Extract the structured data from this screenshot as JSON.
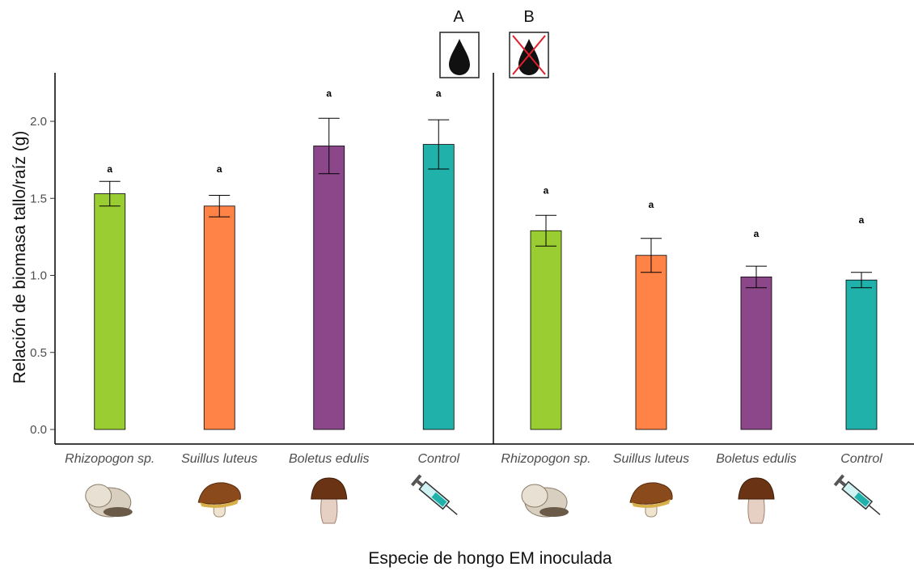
{
  "chart_data": {
    "type": "bar",
    "ylabel": "Relación de biomasa tallo/raíz (g)",
    "xlabel": "Especie de hongo EM inoculada",
    "ylim": [
      0,
      2.3
    ],
    "yticks": [
      "0.0",
      "0.5",
      "1.0",
      "1.5",
      "2.0"
    ],
    "ytick_values": [
      0,
      0.5,
      1.0,
      1.5,
      2.0
    ],
    "grid": false,
    "colors": {
      "Rhizopogon sp.": "#9acd32",
      "Suillus luteus": "#ff8247",
      "Boletus edulis": "#8b4789",
      "Control": "#20b2aa"
    },
    "panels": [
      {
        "label": "A",
        "icon": "water-drop-icon",
        "categories": [
          "Rhizopogon sp.",
          "Suillus luteus",
          "Boletus edulis",
          "Control"
        ],
        "values": [
          1.53,
          1.45,
          1.84,
          1.85
        ],
        "error": [
          0.08,
          0.07,
          0.18,
          0.16
        ],
        "significance": [
          "a",
          "a",
          "a",
          "a"
        ],
        "sig_y": [
          1.69,
          1.69,
          2.18,
          2.18
        ]
      },
      {
        "label": "B",
        "icon": "no-water-drop-icon",
        "categories": [
          "Rhizopogon sp.",
          "Suillus luteus",
          "Boletus edulis",
          "Control"
        ],
        "values": [
          1.29,
          1.13,
          0.99,
          0.97
        ],
        "error": [
          0.1,
          0.11,
          0.07,
          0.05
        ],
        "significance": [
          "a",
          "a",
          "a",
          "a"
        ],
        "sig_y": [
          1.55,
          1.46,
          1.27,
          1.36
        ]
      }
    ],
    "category_icons": [
      "truffle-mushroom-icon",
      "suillus-mushroom-icon",
      "bolete-mushroom-icon",
      "syringe-icon"
    ]
  }
}
